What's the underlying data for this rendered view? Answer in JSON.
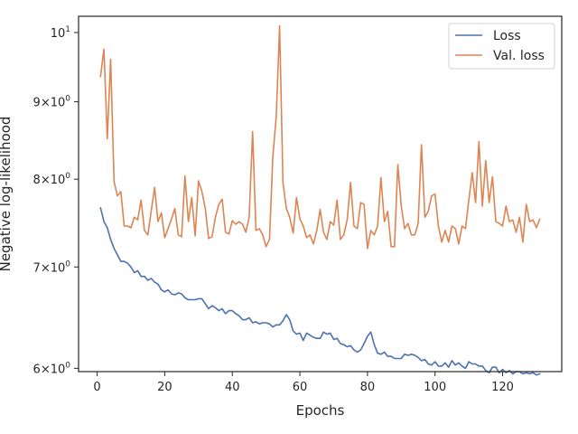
{
  "chart_data": {
    "type": "line",
    "title": "",
    "xlabel": "Epochs",
    "ylabel": "Negative log-likelihood",
    "yscale": "log",
    "xlim": [
      -5.5,
      137.5
    ],
    "ylim": [
      5.97,
      10.25
    ],
    "x_ticks": [
      {
        "value": 0,
        "label": "0"
      },
      {
        "value": 20,
        "label": "20"
      },
      {
        "value": 40,
        "label": "40"
      },
      {
        "value": 60,
        "label": "60"
      },
      {
        "value": 80,
        "label": "80"
      },
      {
        "value": 100,
        "label": "100"
      },
      {
        "value": 120,
        "label": "120"
      }
    ],
    "y_ticks": [
      {
        "value": 6,
        "base": "6",
        "mult": "×",
        "pow": "10",
        "exp": "0"
      },
      {
        "value": 7,
        "base": "7",
        "mult": "×",
        "pow": "10",
        "exp": "0"
      },
      {
        "value": 8,
        "base": "8",
        "mult": "×",
        "pow": "10",
        "exp": "0"
      },
      {
        "value": 9,
        "base": "9",
        "mult": "×",
        "pow": "10",
        "exp": "0"
      },
      {
        "value": 10,
        "base": "",
        "mult": "",
        "pow": "10",
        "exp": "1"
      }
    ],
    "legend_position": "top-right",
    "grid": false,
    "x": [
      1,
      2,
      3,
      4,
      5,
      6,
      7,
      8,
      9,
      10,
      11,
      12,
      13,
      14,
      15,
      16,
      17,
      18,
      19,
      20,
      21,
      22,
      23,
      24,
      25,
      26,
      27,
      28,
      29,
      30,
      31,
      32,
      33,
      34,
      35,
      36,
      37,
      38,
      39,
      40,
      41,
      42,
      43,
      44,
      45,
      46,
      47,
      48,
      49,
      50,
      51,
      52,
      53,
      54,
      55,
      56,
      57,
      58,
      59,
      60,
      61,
      62,
      63,
      64,
      65,
      66,
      67,
      68,
      69,
      70,
      71,
      72,
      73,
      74,
      75,
      76,
      77,
      78,
      79,
      80,
      81,
      82,
      83,
      84,
      85,
      86,
      87,
      88,
      89,
      90,
      91,
      92,
      93,
      94,
      95,
      96,
      97,
      98,
      99,
      100,
      101,
      102,
      103,
      104,
      105,
      106,
      107,
      108,
      109,
      110,
      111,
      112,
      113,
      114,
      115,
      116,
      117,
      118,
      119,
      120,
      121,
      122,
      123,
      124,
      125,
      126,
      127,
      128,
      129,
      130,
      131
    ],
    "series": [
      {
        "name": "Loss",
        "color": "#4c72b0",
        "values": [
          7.66,
          7.5,
          7.43,
          7.3,
          7.2,
          7.13,
          7.06,
          7.06,
          7.04,
          7.0,
          6.94,
          6.96,
          6.9,
          6.9,
          6.86,
          6.88,
          6.84,
          6.82,
          6.76,
          6.74,
          6.76,
          6.72,
          6.71,
          6.73,
          6.72,
          6.68,
          6.66,
          6.66,
          6.66,
          6.67,
          6.67,
          6.62,
          6.57,
          6.6,
          6.58,
          6.55,
          6.57,
          6.52,
          6.55,
          6.55,
          6.52,
          6.5,
          6.46,
          6.46,
          6.48,
          6.43,
          6.44,
          6.42,
          6.43,
          6.43,
          6.42,
          6.39,
          6.41,
          6.41,
          6.45,
          6.51,
          6.46,
          6.35,
          6.32,
          6.33,
          6.26,
          6.33,
          6.31,
          6.29,
          6.28,
          6.28,
          6.34,
          6.32,
          6.33,
          6.27,
          6.28,
          6.23,
          6.22,
          6.2,
          6.21,
          6.17,
          6.15,
          6.17,
          6.23,
          6.3,
          6.34,
          6.22,
          6.14,
          6.13,
          6.15,
          6.11,
          6.11,
          6.09,
          6.09,
          6.09,
          6.13,
          6.12,
          6.13,
          6.12,
          6.1,
          6.07,
          6.08,
          6.04,
          6.03,
          6.06,
          6.02,
          6.02,
          6.05,
          6.01,
          6.07,
          6.03,
          6.05,
          6.02,
          6.0,
          6.06,
          6.04,
          6.04,
          6.02,
          6.02,
          5.98,
          5.96,
          6.01,
          6.01,
          5.96,
          5.99,
          5.96,
          5.98,
          5.95,
          5.97,
          5.97,
          5.95,
          5.96,
          5.95,
          5.96,
          5.94,
          5.95
        ]
      },
      {
        "name": "Val. loss",
        "color": "#dd8452",
        "values": [
          9.35,
          9.75,
          8.51,
          9.6,
          7.97,
          7.8,
          7.85,
          7.45,
          7.45,
          7.43,
          7.55,
          7.52,
          7.75,
          7.4,
          7.35,
          7.62,
          7.9,
          7.5,
          7.6,
          7.32,
          7.42,
          7.53,
          7.65,
          7.35,
          7.33,
          8.04,
          7.5,
          7.78,
          7.34,
          7.98,
          7.85,
          7.65,
          7.31,
          7.33,
          7.55,
          7.7,
          7.76,
          7.38,
          7.36,
          7.51,
          7.47,
          7.5,
          7.47,
          7.38,
          7.55,
          8.6,
          7.4,
          7.42,
          7.35,
          7.22,
          7.3,
          8.28,
          8.8,
          10.1,
          7.96,
          7.65,
          7.55,
          7.37,
          7.78,
          7.53,
          7.45,
          7.32,
          7.35,
          7.25,
          7.4,
          7.64,
          7.38,
          7.3,
          7.5,
          7.46,
          7.75,
          7.3,
          7.35,
          7.52,
          7.96,
          7.45,
          7.42,
          7.72,
          7.7,
          7.2,
          7.4,
          7.35,
          7.45,
          8.02,
          7.5,
          7.62,
          7.22,
          7.22,
          8.18,
          7.68,
          7.42,
          7.48,
          7.35,
          7.35,
          7.48,
          8.43,
          7.55,
          7.62,
          7.8,
          7.82,
          7.45,
          7.27,
          7.4,
          7.27,
          7.45,
          7.42,
          7.25,
          7.45,
          7.42,
          7.75,
          8.08,
          7.72,
          8.47,
          7.68,
          8.23,
          7.72,
          8.03,
          7.5,
          7.48,
          7.45,
          7.68,
          7.5,
          7.52,
          7.38,
          7.55,
          7.27,
          7.7,
          7.5,
          7.52,
          7.43,
          7.53
        ]
      }
    ]
  }
}
